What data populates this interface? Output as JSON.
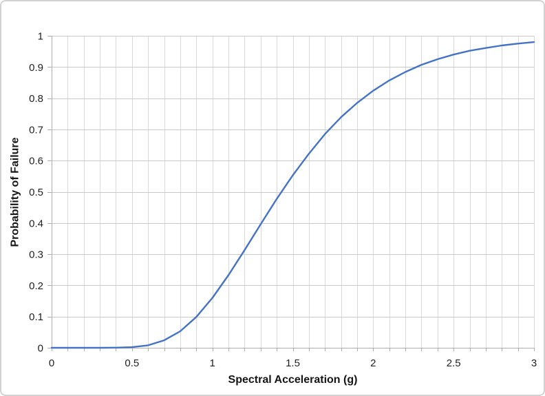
{
  "chart_data": {
    "type": "line",
    "title": "",
    "xlabel": "Spectral Acceleration (g)",
    "ylabel": "Probability of Failure",
    "xlim": [
      0,
      3
    ],
    "ylim": [
      0,
      1
    ],
    "grid": true,
    "legend": "none",
    "x_minor_grid_step": 0.1,
    "x_tick_values": [
      0,
      0.5,
      1,
      1.5,
      2,
      2.5,
      3
    ],
    "x_tick_labels": [
      "0",
      "0.5",
      "1",
      "1.5",
      "2",
      "2.5",
      "3"
    ],
    "y_tick_values": [
      0,
      0.1,
      0.2,
      0.3,
      0.4,
      0.5,
      0.6,
      0.7,
      0.8,
      0.9,
      1
    ],
    "y_tick_labels": [
      "0",
      "0.1",
      "0.2",
      "0.3",
      "0.4",
      "0.5",
      "0.6",
      "0.7",
      "0.8",
      "0.9",
      "1"
    ],
    "series": [
      {
        "name": "Probability of Failure",
        "x": [
          0,
          0.1,
          0.2,
          0.3,
          0.4,
          0.5,
          0.6,
          0.7,
          0.8,
          0.9,
          1.0,
          1.1,
          1.2,
          1.3,
          1.4,
          1.5,
          1.6,
          1.7,
          1.8,
          1.9,
          2.0,
          2.1,
          2.2,
          2.3,
          2.4,
          2.5,
          2.6,
          2.7,
          2.8,
          2.9,
          3.0
        ],
        "y": [
          0,
          0,
          0,
          0.0001,
          0.0004,
          0.002,
          0.008,
          0.024,
          0.053,
          0.099,
          0.16,
          0.233,
          0.313,
          0.396,
          0.477,
          0.553,
          0.622,
          0.685,
          0.739,
          0.785,
          0.824,
          0.857,
          0.884,
          0.907,
          0.925,
          0.94,
          0.952,
          0.961,
          0.969,
          0.975,
          0.98
        ]
      }
    ]
  },
  "colors": {
    "line": "#4472c4",
    "gridline_vertical": "#d9d9d9",
    "gridline_horizontal": "#c9c9c9",
    "axis": "#acacac",
    "tick": "#acacac",
    "label_text": "#1f1f1f",
    "title_text": "#151515",
    "border": "#d2d2d2",
    "background": "#ffffff"
  }
}
